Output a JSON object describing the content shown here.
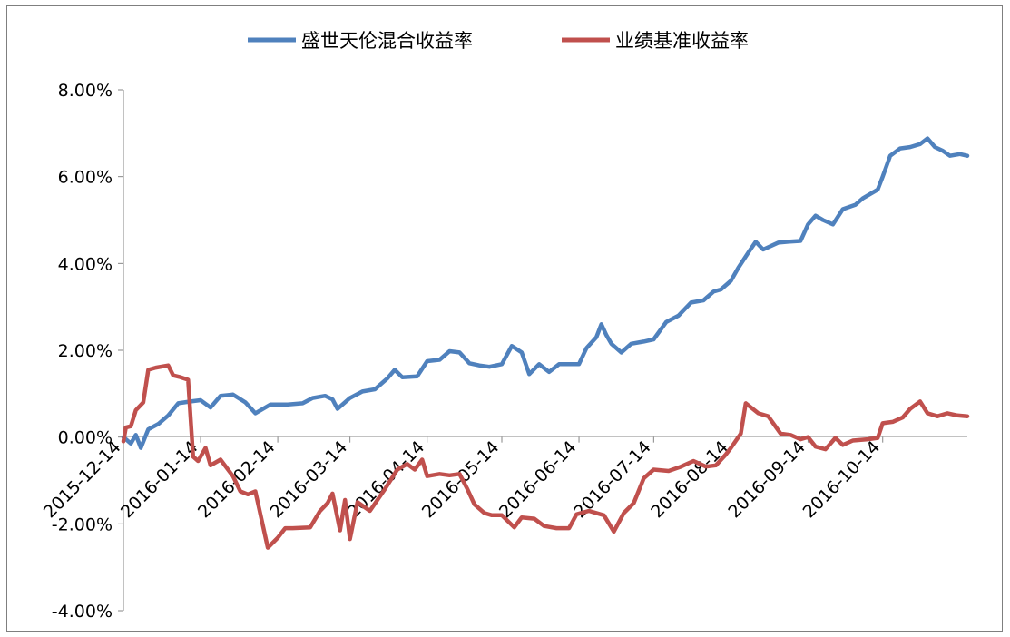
{
  "chart_data": {
    "type": "line",
    "title": "",
    "xlabel": "",
    "ylabel": "",
    "ylim": [
      -0.04,
      0.08
    ],
    "y_tick_labels": [
      "-4.00%",
      "-2.00%",
      "0.00%",
      "2.00%",
      "4.00%",
      "6.00%",
      "8.00%"
    ],
    "x_tick_labels": [
      "2015-12-14",
      "2016-01-14",
      "2016-02-14",
      "2016-03-14",
      "2016-04-14",
      "2016-05-14",
      "2016-06-14",
      "2016-07-14",
      "2016-08-14",
      "2016-09-14",
      "2016-10-14"
    ],
    "grid": false,
    "legend_position": "top",
    "series": [
      {
        "name": "盛世天伦混合收益率",
        "color": "#4f81bd",
        "points": [
          [
            "2015-12-14",
            0.0
          ],
          [
            "2015-12-17",
            -0.0015
          ],
          [
            "2015-12-19",
            0.0005
          ],
          [
            "2015-12-21",
            -0.0025
          ],
          [
            "2015-12-24",
            0.0018
          ],
          [
            "2015-12-28",
            0.003
          ],
          [
            "2016-01-01",
            0.005
          ],
          [
            "2016-01-05",
            0.0078
          ],
          [
            "2016-01-10",
            0.0082
          ],
          [
            "2016-01-14",
            0.0085
          ],
          [
            "2016-01-18",
            0.0068
          ],
          [
            "2016-01-22",
            0.0095
          ],
          [
            "2016-01-27",
            0.0098
          ],
          [
            "2016-02-01",
            0.008
          ],
          [
            "2016-02-05",
            0.0055
          ],
          [
            "2016-02-11",
            0.0075
          ],
          [
            "2016-02-18",
            0.0075
          ],
          [
            "2016-02-24",
            0.0078
          ],
          [
            "2016-02-28",
            0.009
          ],
          [
            "2016-03-04",
            0.0095
          ],
          [
            "2016-03-07",
            0.0087
          ],
          [
            "2016-03-09",
            0.0065
          ],
          [
            "2016-03-14",
            0.009
          ],
          [
            "2016-03-19",
            0.0105
          ],
          [
            "2016-03-24",
            0.011
          ],
          [
            "2016-03-29",
            0.0135
          ],
          [
            "2016-04-01",
            0.0155
          ],
          [
            "2016-04-04",
            0.0138
          ],
          [
            "2016-04-10",
            0.014
          ],
          [
            "2016-04-14",
            0.0175
          ],
          [
            "2016-04-19",
            0.0178
          ],
          [
            "2016-04-23",
            0.0198
          ],
          [
            "2016-04-27",
            0.0195
          ],
          [
            "2016-05-01",
            0.017
          ],
          [
            "2016-05-05",
            0.0165
          ],
          [
            "2016-05-09",
            0.0162
          ],
          [
            "2016-05-14",
            0.0168
          ],
          [
            "2016-05-18",
            0.021
          ],
          [
            "2016-05-22",
            0.0195
          ],
          [
            "2016-05-25",
            0.0145
          ],
          [
            "2016-05-29",
            0.0168
          ],
          [
            "2016-06-02",
            0.015
          ],
          [
            "2016-06-06",
            0.0168
          ],
          [
            "2016-06-14",
            0.0168
          ],
          [
            "2016-06-17",
            0.0205
          ],
          [
            "2016-06-21",
            0.023
          ],
          [
            "2016-06-23",
            0.026
          ],
          [
            "2016-06-25",
            0.0235
          ],
          [
            "2016-06-27",
            0.0215
          ],
          [
            "2016-07-01",
            0.0195
          ],
          [
            "2016-07-05",
            0.0215
          ],
          [
            "2016-07-10",
            0.022
          ],
          [
            "2016-07-14",
            0.0225
          ],
          [
            "2016-07-19",
            0.0265
          ],
          [
            "2016-07-24",
            0.028
          ],
          [
            "2016-07-29",
            0.031
          ],
          [
            "2016-08-03",
            0.0315
          ],
          [
            "2016-08-07",
            0.0335
          ],
          [
            "2016-08-10",
            0.034
          ],
          [
            "2016-08-14",
            0.036
          ],
          [
            "2016-08-17",
            0.039
          ],
          [
            "2016-08-21",
            0.0425
          ],
          [
            "2016-08-24",
            0.045
          ],
          [
            "2016-08-27",
            0.0432
          ],
          [
            "2016-09-02",
            0.0448
          ],
          [
            "2016-09-06",
            0.045
          ],
          [
            "2016-09-11",
            0.0452
          ],
          [
            "2016-09-14",
            0.049
          ],
          [
            "2016-09-17",
            0.051
          ],
          [
            "2016-09-20",
            0.05
          ],
          [
            "2016-09-24",
            0.049
          ],
          [
            "2016-09-28",
            0.0525
          ],
          [
            "2016-10-03",
            0.0535
          ],
          [
            "2016-10-06",
            0.055
          ],
          [
            "2016-10-12",
            0.057
          ],
          [
            "2016-10-14",
            0.06
          ],
          [
            "2016-10-17",
            0.0648
          ],
          [
            "2016-10-21",
            0.0665
          ],
          [
            "2016-10-25",
            0.0668
          ],
          [
            "2016-10-29",
            0.0675
          ],
          [
            "2016-11-01",
            0.0688
          ],
          [
            "2016-11-04",
            0.0668
          ],
          [
            "2016-11-07",
            0.066
          ],
          [
            "2016-11-10",
            0.0648
          ],
          [
            "2016-11-14",
            0.0652
          ],
          [
            "2016-11-17",
            0.0648
          ]
        ]
      },
      {
        "name": "业绩基准收益率",
        "color": "#c0504d",
        "points": [
          [
            "2015-12-14",
            -0.001
          ],
          [
            "2015-12-15",
            0.0022
          ],
          [
            "2015-12-17",
            0.0025
          ],
          [
            "2015-12-19",
            0.0062
          ],
          [
            "2015-12-22",
            0.008
          ],
          [
            "2015-12-24",
            0.0155
          ],
          [
            "2015-12-27",
            0.016
          ],
          [
            "2016-01-01",
            0.0165
          ],
          [
            "2016-01-03",
            0.0142
          ],
          [
            "2016-01-06",
            0.0138
          ],
          [
            "2016-01-09",
            0.0132
          ],
          [
            "2016-01-11",
            -0.0045
          ],
          [
            "2016-01-13",
            -0.0055
          ],
          [
            "2016-01-16",
            -0.0025
          ],
          [
            "2016-01-18",
            -0.0065
          ],
          [
            "2016-01-22",
            -0.0052
          ],
          [
            "2016-01-27",
            -0.009
          ],
          [
            "2016-01-30",
            -0.0125
          ],
          [
            "2016-02-02",
            -0.0132
          ],
          [
            "2016-02-05",
            -0.0125
          ],
          [
            "2016-02-10",
            -0.0255
          ],
          [
            "2016-02-14",
            -0.0232
          ],
          [
            "2016-02-17",
            -0.021
          ],
          [
            "2016-02-20",
            -0.021
          ],
          [
            "2016-02-27",
            -0.0208
          ],
          [
            "2016-03-02",
            -0.017
          ],
          [
            "2016-03-05",
            -0.0152
          ],
          [
            "2016-03-07",
            -0.013
          ],
          [
            "2016-03-10",
            -0.0215
          ],
          [
            "2016-03-12",
            -0.0145
          ],
          [
            "2016-03-14",
            -0.0235
          ],
          [
            "2016-03-17",
            -0.015
          ],
          [
            "2016-03-22",
            -0.017
          ],
          [
            "2016-03-28",
            -0.012
          ],
          [
            "2016-04-02",
            -0.0075
          ],
          [
            "2016-04-06",
            -0.0062
          ],
          [
            "2016-04-09",
            -0.0075
          ],
          [
            "2016-04-12",
            -0.0052
          ],
          [
            "2016-04-14",
            -0.009
          ],
          [
            "2016-04-19",
            -0.0085
          ],
          [
            "2016-04-23",
            -0.0088
          ],
          [
            "2016-04-27",
            -0.0085
          ],
          [
            "2016-04-30",
            -0.0118
          ],
          [
            "2016-05-03",
            -0.0155
          ],
          [
            "2016-05-07",
            -0.0175
          ],
          [
            "2016-05-10",
            -0.018
          ],
          [
            "2016-05-14",
            -0.018
          ],
          [
            "2016-05-19",
            -0.0208
          ],
          [
            "2016-05-22",
            -0.0185
          ],
          [
            "2016-05-27",
            -0.0188
          ],
          [
            "2016-05-31",
            -0.0205
          ],
          [
            "2016-06-05",
            -0.021
          ],
          [
            "2016-06-10",
            -0.021
          ],
          [
            "2016-06-13",
            -0.0178
          ],
          [
            "2016-06-18",
            -0.017
          ],
          [
            "2016-06-24",
            -0.018
          ],
          [
            "2016-06-28",
            -0.0218
          ],
          [
            "2016-07-02",
            -0.0175
          ],
          [
            "2016-07-06",
            -0.0152
          ],
          [
            "2016-07-10",
            -0.0095
          ],
          [
            "2016-07-14",
            -0.0075
          ],
          [
            "2016-07-20",
            -0.0078
          ],
          [
            "2016-07-25",
            -0.0068
          ],
          [
            "2016-07-30",
            -0.0055
          ],
          [
            "2016-08-04",
            -0.0068
          ],
          [
            "2016-08-08",
            -0.0065
          ],
          [
            "2016-08-12",
            -0.004
          ],
          [
            "2016-08-14",
            -0.0025
          ],
          [
            "2016-08-18",
            0.0008
          ],
          [
            "2016-08-20",
            0.0078
          ],
          [
            "2016-08-25",
            0.0055
          ],
          [
            "2016-08-29",
            0.0048
          ],
          [
            "2016-09-03",
            0.0008
          ],
          [
            "2016-09-07",
            0.0005
          ],
          [
            "2016-09-11",
            -0.0005
          ],
          [
            "2016-09-14",
            0.0
          ],
          [
            "2016-09-17",
            -0.0022
          ],
          [
            "2016-09-21",
            -0.0028
          ],
          [
            "2016-09-25",
            -0.0002
          ],
          [
            "2016-09-28",
            -0.0018
          ],
          [
            "2016-10-02",
            -0.0008
          ],
          [
            "2016-10-08",
            -0.0005
          ],
          [
            "2016-10-12",
            -0.0002
          ],
          [
            "2016-10-14",
            0.0032
          ],
          [
            "2016-10-18",
            0.0035
          ],
          [
            "2016-10-22",
            0.0045
          ],
          [
            "2016-10-25",
            0.0065
          ],
          [
            "2016-10-29",
            0.0082
          ],
          [
            "2016-11-01",
            0.0055
          ],
          [
            "2016-11-05",
            0.0048
          ],
          [
            "2016-11-09",
            0.0055
          ],
          [
            "2016-11-13",
            0.005
          ],
          [
            "2016-11-17",
            0.0048
          ]
        ]
      }
    ]
  }
}
